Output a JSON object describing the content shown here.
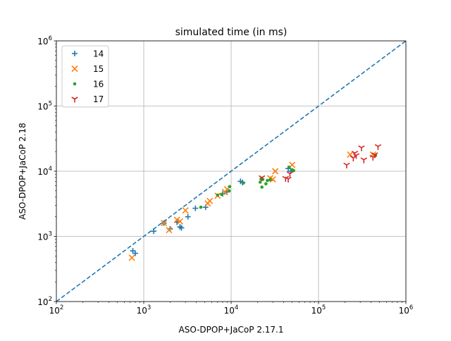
{
  "chart_data": {
    "type": "scatter",
    "title": "simulated time (in ms)",
    "xlabel": "ASO-DPOP+JaCoP 2.17.1",
    "ylabel": "ASO-DPOP+JaCoP 2.18",
    "xscale": "log",
    "yscale": "log",
    "xlim": [
      100,
      1000000
    ],
    "ylim": [
      100,
      1000000
    ],
    "grid": true,
    "legend_position": "top-left",
    "x_ticks": [
      {
        "value": 100,
        "base": "10",
        "exp": "2"
      },
      {
        "value": 1000,
        "base": "10",
        "exp": "3"
      },
      {
        "value": 10000,
        "base": "10",
        "exp": "4"
      },
      {
        "value": 100000,
        "base": "10",
        "exp": "5"
      },
      {
        "value": 1000000,
        "base": "10",
        "exp": "6"
      }
    ],
    "y_ticks": [
      {
        "value": 100,
        "base": "10",
        "exp": "2"
      },
      {
        "value": 1000,
        "base": "10",
        "exp": "3"
      },
      {
        "value": 10000,
        "base": "10",
        "exp": "4"
      },
      {
        "value": 100000,
        "base": "10",
        "exp": "5"
      },
      {
        "value": 1000000,
        "base": "10",
        "exp": "6"
      }
    ],
    "reference_line": {
      "style": "dashed",
      "color": "#1f77b4",
      "from": [
        100,
        100
      ],
      "to": [
        1000000,
        1000000
      ]
    },
    "series": [
      {
        "name": "14",
        "marker": "plus",
        "color": "#1f77b4",
        "points": [
          [
            750,
            600
          ],
          [
            800,
            550
          ],
          [
            1300,
            1200
          ],
          [
            1700,
            1600
          ],
          [
            2000,
            1300
          ],
          [
            2400,
            1650
          ],
          [
            2600,
            1400
          ],
          [
            2700,
            1350
          ],
          [
            3200,
            2000
          ],
          [
            3900,
            2700
          ],
          [
            5100,
            2800
          ],
          [
            8000,
            4500
          ],
          [
            8900,
            4800
          ],
          [
            12800,
            7000
          ],
          [
            13500,
            6700
          ],
          [
            45000,
            11000
          ],
          [
            48000,
            10000
          ]
        ]
      },
      {
        "name": "15",
        "marker": "x",
        "color": "#ff7f0e",
        "points": [
          [
            730,
            470
          ],
          [
            1700,
            1600
          ],
          [
            1950,
            1250
          ],
          [
            2400,
            1800
          ],
          [
            2600,
            1700
          ],
          [
            3000,
            2500
          ],
          [
            5400,
            3200
          ],
          [
            5700,
            3500
          ],
          [
            7000,
            4200
          ],
          [
            8500,
            4800
          ],
          [
            9000,
            5300
          ],
          [
            28000,
            7800
          ],
          [
            30000,
            7500
          ],
          [
            32000,
            10000
          ],
          [
            50000,
            12500
          ],
          [
            230000,
            18000
          ],
          [
            420000,
            18000
          ]
        ]
      },
      {
        "name": "16",
        "marker": "dot",
        "color": "#2ca02c",
        "points": [
          [
            4500,
            2800
          ],
          [
            7000,
            4300
          ],
          [
            7800,
            4400
          ],
          [
            9500,
            5000
          ],
          [
            9600,
            5800
          ],
          [
            13800,
            6600
          ],
          [
            21500,
            6800
          ],
          [
            22000,
            7600
          ],
          [
            22500,
            5700
          ],
          [
            23000,
            7500
          ],
          [
            25000,
            6400
          ],
          [
            26000,
            7200
          ],
          [
            28000,
            7400
          ],
          [
            46000,
            11500
          ],
          [
            50000,
            10500
          ],
          [
            52000,
            10200
          ],
          [
            450000,
            17500
          ]
        ]
      },
      {
        "name": "17",
        "marker": "tri_down",
        "color": "#d62728",
        "points": [
          [
            22500,
            8000
          ],
          [
            42000,
            7800
          ],
          [
            45000,
            7600
          ],
          [
            47000,
            9200
          ],
          [
            210000,
            12500
          ],
          [
            250000,
            16000
          ],
          [
            260000,
            19000
          ],
          [
            270000,
            17500
          ],
          [
            310000,
            23000
          ],
          [
            330000,
            15000
          ],
          [
            420000,
            16500
          ],
          [
            440000,
            18000
          ],
          [
            480000,
            24000
          ]
        ]
      }
    ]
  }
}
